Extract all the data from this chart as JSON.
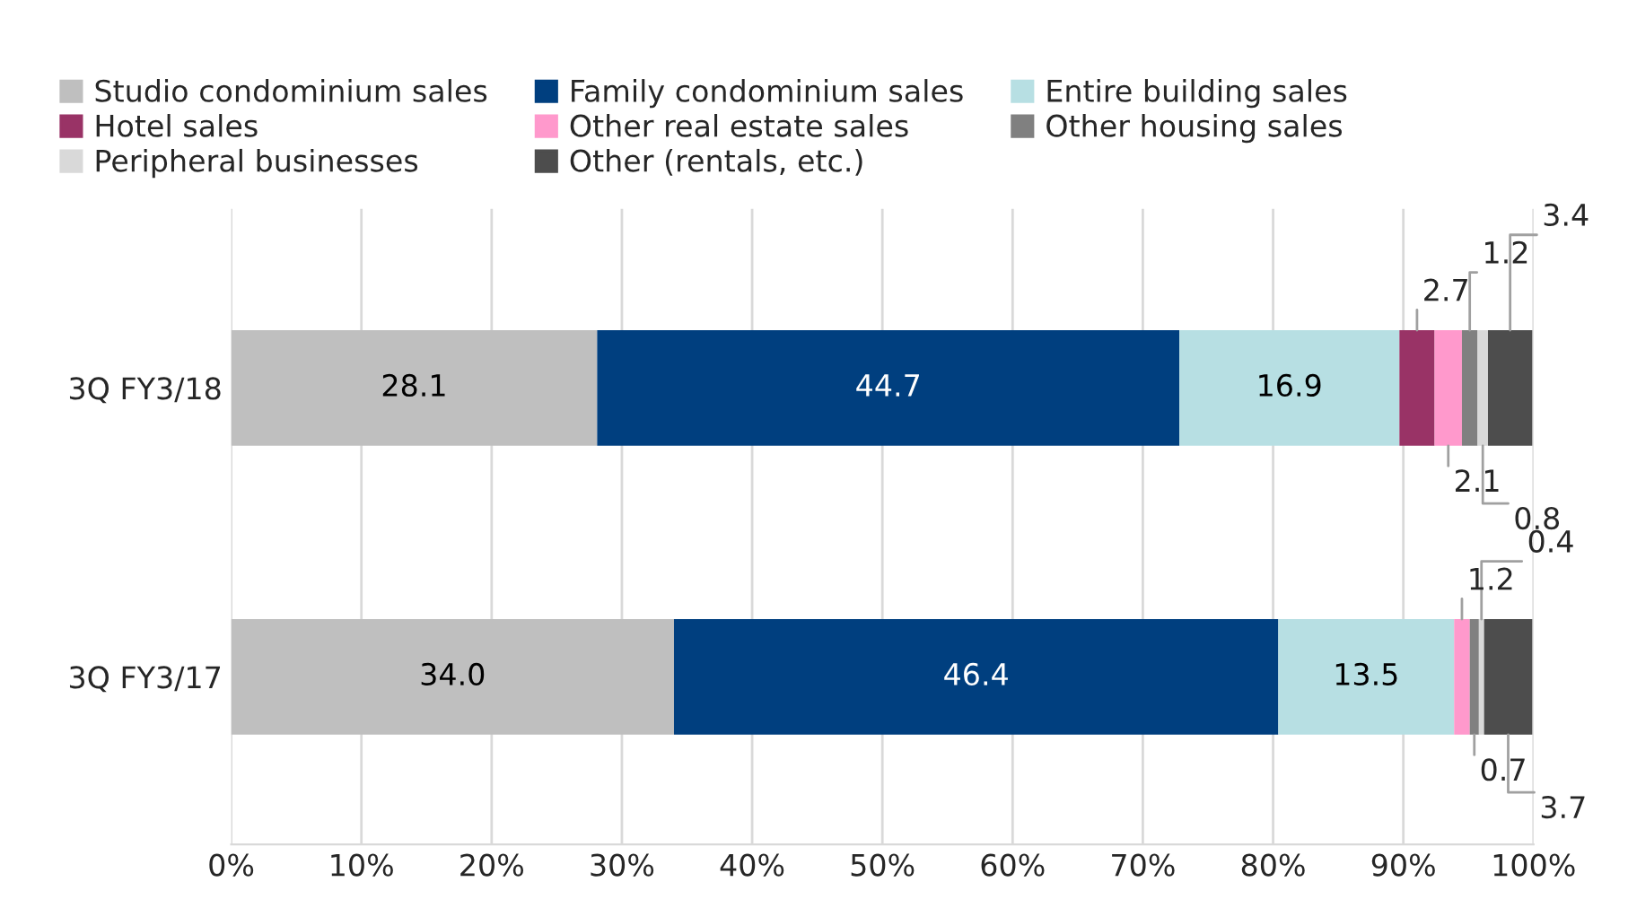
{
  "chart_data": {
    "type": "bar",
    "orientation": "horizontal",
    "stacked": true,
    "categories": [
      "3Q FY3/18",
      "3Q FY3/17"
    ],
    "series": [
      {
        "name": "Studio condominium sales",
        "color": "#bfbfbf",
        "values": [
          28.1,
          34.0
        ],
        "value_labels": [
          "28.1",
          "34.0"
        ]
      },
      {
        "name": "Family condominium sales",
        "color": "#003f7f",
        "values": [
          44.7,
          46.4
        ],
        "value_labels": [
          "44.7",
          "46.4"
        ]
      },
      {
        "name": "Entire building sales",
        "color": "#b7dfe3",
        "values": [
          16.9,
          13.5
        ],
        "value_labels": [
          "16.9",
          "13.5"
        ]
      },
      {
        "name": "Hotel sales",
        "color": "#993366",
        "values": [
          2.7,
          null
        ],
        "value_labels": [
          "2.7",
          null
        ]
      },
      {
        "name": "Other real estate sales",
        "color": "#ff99cc",
        "values": [
          2.1,
          1.2
        ],
        "value_labels": [
          "2.1",
          "1.2"
        ]
      },
      {
        "name": "Other housing sales",
        "color": "#808080",
        "values": [
          1.2,
          0.7
        ],
        "value_labels": [
          "1.2",
          "0.7"
        ]
      },
      {
        "name": "Peripheral businesses",
        "color": "#d9d9d9",
        "values": [
          0.8,
          0.4
        ],
        "value_labels": [
          "0.8",
          "0.4"
        ]
      },
      {
        "name": "Other (rentals, etc.)",
        "color": "#4d4d4d",
        "values": [
          3.4,
          3.7
        ],
        "value_labels": [
          "3.4",
          "3.7"
        ]
      }
    ],
    "xlim": [
      0,
      100
    ],
    "xticks": [
      {
        "value": 0,
        "label": "0%"
      },
      {
        "value": 10,
        "label": "10%"
      },
      {
        "value": 20,
        "label": "20%"
      },
      {
        "value": 30,
        "label": "30%"
      },
      {
        "value": 40,
        "label": "40%"
      },
      {
        "value": 50,
        "label": "50%"
      },
      {
        "value": 60,
        "label": "60%"
      },
      {
        "value": 70,
        "label": "70%"
      },
      {
        "value": 80,
        "label": "80%"
      },
      {
        "value": 90,
        "label": "90%"
      },
      {
        "value": 100,
        "label": "100%"
      }
    ],
    "grid": "x",
    "legend": "top"
  }
}
